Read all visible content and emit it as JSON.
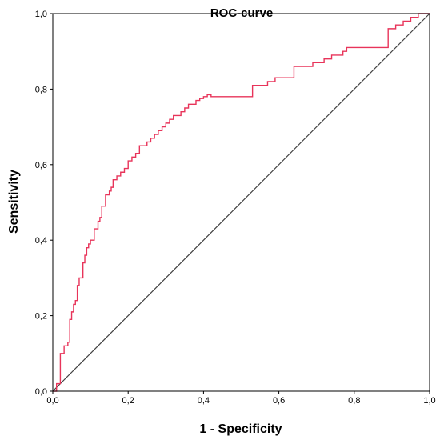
{
  "chart_data": {
    "type": "line",
    "title": "ROC-curve",
    "xlabel": "1 - Specificity",
    "ylabel": "Sensitivity",
    "xlim": [
      0,
      1
    ],
    "ylim": [
      0,
      1
    ],
    "x_ticks": [
      "0,0",
      "0,2",
      "0,4",
      "0,6",
      "0,8",
      "1,0"
    ],
    "y_ticks": [
      "0,0",
      "0,2",
      "0,4",
      "0,6",
      "0,8",
      "1,0"
    ],
    "x_tick_values": [
      0,
      0.2,
      0.4,
      0.6,
      0.8,
      1.0
    ],
    "y_tick_values": [
      0,
      0.2,
      0.4,
      0.6,
      0.8,
      1.0
    ],
    "grid": false,
    "legend": "none",
    "colors": {
      "roc": "#e8345a",
      "reference": "#404040"
    },
    "series": [
      {
        "x": [
          0,
          0.01,
          0.01,
          0.02,
          0.02,
          0.02,
          0.02,
          0.03,
          0.03,
          0.04,
          0.04,
          0.045,
          0.045,
          0.05,
          0.05,
          0.055,
          0.055,
          0.06,
          0.06,
          0.065,
          0.065,
          0.07,
          0.07,
          0.08,
          0.08,
          0.085,
          0.085,
          0.09,
          0.09,
          0.095,
          0.095,
          0.1,
          0.1,
          0.11,
          0.11,
          0.12,
          0.12,
          0.125,
          0.125,
          0.13,
          0.13,
          0.14,
          0.14,
          0.15,
          0.15,
          0.155,
          0.155,
          0.16,
          0.16,
          0.17,
          0.17,
          0.18,
          0.18,
          0.19,
          0.19,
          0.2,
          0.2,
          0.21,
          0.21,
          0.22,
          0.22,
          0.23,
          0.23,
          0.25,
          0.25,
          0.26,
          0.26,
          0.27,
          0.27,
          0.28,
          0.28,
          0.29,
          0.29,
          0.3,
          0.3,
          0.31,
          0.31,
          0.32,
          0.32,
          0.34,
          0.34,
          0.35,
          0.35,
          0.36,
          0.36,
          0.38,
          0.38,
          0.39,
          0.39,
          0.4,
          0.4,
          0.41,
          0.41,
          0.42,
          0.42,
          0.44,
          0.44,
          0.53,
          0.53,
          0.57,
          0.57,
          0.59,
          0.59,
          0.64,
          0.64,
          0.66,
          0.66,
          0.69,
          0.69,
          0.72,
          0.72,
          0.74,
          0.74,
          0.76,
          0.76,
          0.77,
          0.77,
          0.78,
          0.78,
          0.79,
          0.79,
          0.89,
          0.89,
          0.91,
          0.91,
          0.93,
          0.93,
          0.94,
          0.94,
          0.95,
          0.95,
          0.96,
          0.96,
          0.97,
          0.97,
          1.0
        ],
        "y": [
          0,
          0,
          0.02,
          0.02,
          0.06,
          0.1,
          0.1,
          0.1,
          0.12,
          0.12,
          0.13,
          0.13,
          0.19,
          0.19,
          0.21,
          0.21,
          0.23,
          0.23,
          0.24,
          0.24,
          0.28,
          0.28,
          0.3,
          0.3,
          0.34,
          0.34,
          0.36,
          0.36,
          0.38,
          0.38,
          0.39,
          0.39,
          0.4,
          0.4,
          0.43,
          0.43,
          0.45,
          0.45,
          0.46,
          0.46,
          0.49,
          0.49,
          0.52,
          0.52,
          0.53,
          0.53,
          0.54,
          0.54,
          0.56,
          0.56,
          0.57,
          0.57,
          0.58,
          0.58,
          0.59,
          0.59,
          0.61,
          0.61,
          0.62,
          0.62,
          0.63,
          0.63,
          0.65,
          0.65,
          0.66,
          0.66,
          0.67,
          0.67,
          0.68,
          0.68,
          0.69,
          0.69,
          0.7,
          0.7,
          0.71,
          0.71,
          0.72,
          0.72,
          0.73,
          0.73,
          0.74,
          0.74,
          0.75,
          0.75,
          0.76,
          0.76,
          0.77,
          0.77,
          0.775,
          0.775,
          0.78,
          0.78,
          0.785,
          0.785,
          0.78,
          0.78,
          0.78,
          0.78,
          0.81,
          0.81,
          0.82,
          0.82,
          0.83,
          0.83,
          0.86,
          0.86,
          0.86,
          0.86,
          0.87,
          0.87,
          0.88,
          0.88,
          0.89,
          0.89,
          0.89,
          0.89,
          0.9,
          0.9,
          0.91,
          0.91,
          0.91,
          0.91,
          0.96,
          0.96,
          0.97,
          0.97,
          0.98,
          0.98,
          0.98,
          0.98,
          0.99,
          0.99,
          0.99,
          0.99,
          1.0,
          1.0
        ]
      },
      {
        "x": [
          0,
          1
        ],
        "y": [
          0,
          1
        ]
      }
    ]
  }
}
